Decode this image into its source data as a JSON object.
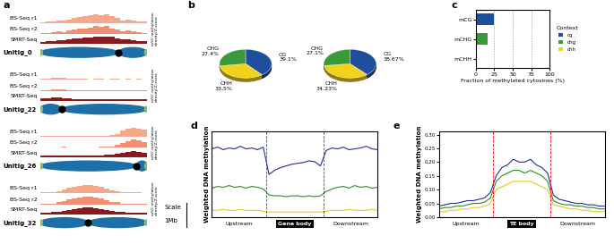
{
  "chart_data": [
    {
      "panel": "a",
      "type": "genome_tracks",
      "ylabel": "m5C methylation\ndensity/Z-score",
      "ylim": [
        0,
        1
      ],
      "scale_label": "Scale",
      "scale_bar_label": "1Mb",
      "unitigs": [
        {
          "name": "Unitig_0",
          "centromere": 0.73,
          "series": [
            {
              "name": "BS-Seq r1",
              "color": "#f5a88a",
              "values": [
                0.1,
                0.15,
                0.2,
                0.3,
                0.25,
                0.4,
                0.5,
                0.6,
                0.7,
                0.8,
                0.9,
                0.85,
                0.95,
                0.7,
                0.5,
                0.3,
                0.4,
                0.3,
                0.2,
                0.15
              ]
            },
            {
              "name": "BS-Seq r2",
              "color": "#ef8f73",
              "values": [
                0.1,
                0.1,
                0.2,
                0.25,
                0.2,
                0.35,
                0.45,
                0.55,
                0.6,
                0.7,
                0.8,
                0.75,
                0.85,
                0.6,
                0.45,
                0.3,
                0.35,
                0.25,
                0.2,
                0.1
              ]
            },
            {
              "name": "SMRT-Seq",
              "color": "#8b1a1a",
              "values": [
                0.2,
                0.3,
                0.3,
                0.4,
                0.4,
                0.5,
                0.6,
                0.6,
                0.7,
                0.7,
                0.8,
                0.8,
                0.9,
                0.8,
                0.6,
                0.5,
                0.5,
                0.4,
                0.3,
                0.3
              ]
            }
          ]
        },
        {
          "name": "Unitig_22",
          "centromere": 0.2,
          "series": [
            {
              "name": "BS-Seq r1",
              "color": "#f5a88a",
              "values": [
                0.1,
                0.15,
                0.2,
                0.25,
                0.2,
                0.15,
                0.1,
                0.1,
                0.1,
                0.05,
                0.1,
                0.1,
                0.05,
                0.1,
                0.1,
                0.05,
                0.1,
                0.05,
                0.1,
                0.05
              ]
            },
            {
              "name": "BS-Seq r2",
              "color": "#ef8f73",
              "values": [
                0.1,
                0.1,
                0.15,
                0.2,
                0.2,
                0.1,
                0.1,
                0.05,
                0.1,
                0.05,
                0.05,
                0.1,
                0.05,
                0.05,
                0.1,
                0.05,
                0.05,
                0.05,
                0.1,
                0.05
              ]
            },
            {
              "name": "SMRT-Seq",
              "color": "#8b1a1a",
              "values": [
                0.3,
                0.3,
                0.4,
                0.4,
                0.3,
                0.3,
                0.2,
                0.2,
                0.2,
                0.2,
                0.2,
                0.2,
                0.2,
                0.2,
                0.2,
                0.2,
                0.2,
                0.2,
                0.2,
                0.2
              ]
            }
          ]
        },
        {
          "name": "Unitig_26",
          "centromere": 0.9,
          "series": [
            {
              "name": "BS-Seq r1",
              "color": "#f5a88a",
              "values": [
                0.05,
                0.05,
                0.1,
                0.05,
                0.05,
                0.1,
                0.05,
                0.05,
                0.1,
                0.05,
                0.1,
                0.05,
                0.1,
                0.15,
                0.3,
                0.6,
                0.8,
                0.9,
                0.85,
                0.7
              ]
            },
            {
              "name": "BS-Seq r2",
              "color": "#ef8f73",
              "values": [
                0.05,
                0.05,
                0.05,
                0.05,
                0.1,
                0.05,
                0.05,
                0.05,
                0.05,
                0.05,
                0.05,
                0.1,
                0.1,
                0.15,
                0.25,
                0.5,
                0.7,
                0.8,
                0.75,
                0.6
              ]
            },
            {
              "name": "SMRT-Seq",
              "color": "#8b1a1a",
              "values": [
                0.2,
                0.2,
                0.2,
                0.2,
                0.2,
                0.2,
                0.2,
                0.2,
                0.2,
                0.2,
                0.25,
                0.25,
                0.3,
                0.3,
                0.4,
                0.5,
                0.6,
                0.7,
                0.6,
                0.5
              ]
            }
          ]
        },
        {
          "name": "Unitig_32",
          "centromere": 0.45,
          "series": [
            {
              "name": "BS-Seq r1",
              "color": "#f5a88a",
              "values": [
                0.1,
                0.1,
                0.15,
                0.2,
                0.4,
                0.6,
                0.7,
                0.8,
                0.9,
                0.85,
                0.8,
                0.7,
                0.5,
                0.3,
                0.2,
                0.15,
                0.1,
                0.1,
                0.1,
                0.05
              ]
            },
            {
              "name": "BS-Seq r2",
              "color": "#ef8f73",
              "values": [
                0.1,
                0.1,
                0.1,
                0.2,
                0.35,
                0.5,
                0.6,
                0.7,
                0.8,
                0.75,
                0.7,
                0.6,
                0.45,
                0.25,
                0.2,
                0.1,
                0.1,
                0.1,
                0.05,
                0.05
              ]
            },
            {
              "name": "SMRT-Seq",
              "color": "#8b1a1a",
              "values": [
                0.2,
                0.2,
                0.3,
                0.3,
                0.4,
                0.5,
                0.6,
                0.7,
                0.8,
                0.8,
                0.7,
                0.6,
                0.5,
                0.4,
                0.3,
                0.3,
                0.2,
                0.2,
                0.2,
                0.2
              ]
            }
          ]
        }
      ]
    },
    {
      "panel": "b",
      "type": "pie",
      "pies": [
        {
          "categories": [
            "CG",
            "CHH",
            "CHG"
          ],
          "values": [
            39.1,
            33.5,
            27.4
          ],
          "value_labels": [
            "39.1%",
            "33.5%",
            "27.4%"
          ],
          "colors": [
            "#1f4e9c",
            "#f2d21b",
            "#3a9a3a"
          ]
        },
        {
          "categories": [
            "CG",
            "CHH",
            "CHG"
          ],
          "values": [
            38.67,
            34.23,
            27.1
          ],
          "value_labels": [
            "38.67%",
            "34.23%",
            "27.1%"
          ],
          "colors": [
            "#1f4e9c",
            "#f2d21b",
            "#3a9a3a"
          ]
        }
      ]
    },
    {
      "panel": "c",
      "type": "bar",
      "orientation": "horizontal",
      "categories": [
        "mCG",
        "mCHG",
        "mCHH"
      ],
      "series": [
        {
          "name": "cg",
          "color": "#1f4e9c",
          "values": [
            24,
            null,
            null
          ]
        },
        {
          "name": "chg",
          "color": "#3a9a3a",
          "values": [
            null,
            16,
            null
          ]
        },
        {
          "name": "chh",
          "color": "#f2d21b",
          "values": [
            null,
            null,
            1
          ]
        }
      ],
      "xlabel": "Fraction of methylated cytosines (%)",
      "xlim": [
        0,
        100
      ],
      "xticks": [
        0,
        25,
        50,
        75,
        100
      ],
      "grid": true,
      "legend": "right",
      "legend_title": "Context"
    },
    {
      "panel": "d",
      "type": "line",
      "ylabel": "Weighted DNA methylation",
      "tick_labels": false,
      "x": [
        1,
        2,
        3,
        4,
        5,
        6,
        7,
        8,
        9,
        10,
        11,
        12,
        13,
        14,
        15,
        16,
        17,
        18,
        19,
        20,
        21,
        22,
        23,
        24,
        25,
        26,
        27,
        28,
        29,
        30
      ],
      "xlim": [
        1,
        30
      ],
      "ylim": [
        0,
        1
      ],
      "boundaries": [
        10.5,
        20.5
      ],
      "region_labels": [
        "Upstream",
        "Gene body",
        "Downstream"
      ],
      "series": [
        {
          "color": "#1f2f9c",
          "values": [
            0.8,
            0.82,
            0.79,
            0.81,
            0.8,
            0.83,
            0.8,
            0.81,
            0.79,
            0.82,
            0.5,
            0.55,
            0.58,
            0.6,
            0.62,
            0.63,
            0.64,
            0.66,
            0.65,
            0.6,
            0.78,
            0.81,
            0.8,
            0.82,
            0.79,
            0.8,
            0.81,
            0.83,
            0.8,
            0.79
          ]
        },
        {
          "color": "#2e8b2e",
          "values": [
            0.34,
            0.36,
            0.35,
            0.37,
            0.35,
            0.36,
            0.34,
            0.36,
            0.35,
            0.33,
            0.26,
            0.25,
            0.25,
            0.24,
            0.25,
            0.25,
            0.24,
            0.25,
            0.24,
            0.25,
            0.3,
            0.33,
            0.35,
            0.36,
            0.34,
            0.37,
            0.35,
            0.36,
            0.34,
            0.35
          ]
        },
        {
          "color": "#e8c81a",
          "values": [
            0.08,
            0.08,
            0.09,
            0.08,
            0.08,
            0.09,
            0.08,
            0.08,
            0.08,
            0.07,
            0.06,
            0.06,
            0.06,
            0.06,
            0.06,
            0.06,
            0.06,
            0.06,
            0.06,
            0.06,
            0.07,
            0.08,
            0.08,
            0.08,
            0.09,
            0.08,
            0.08,
            0.08,
            0.09,
            0.08
          ]
        }
      ]
    },
    {
      "panel": "e",
      "type": "line",
      "ylabel": "Weighted DNA methylation",
      "tick_labels": "y",
      "x": [
        1,
        2,
        3,
        4,
        5,
        6,
        7,
        8,
        9,
        10,
        11,
        12,
        13,
        14,
        15,
        16,
        17,
        18,
        19,
        20,
        21,
        22,
        23,
        24,
        25,
        26,
        27,
        28,
        29,
        30
      ],
      "xlim": [
        1,
        30
      ],
      "ylim": [
        0,
        0.31
      ],
      "yticks": [
        {
          "value": 0.0,
          "label": "0.00"
        },
        0.05,
        {
          "value": 0.1,
          "label": "0.10"
        },
        0.15,
        {
          "value": 0.2,
          "label": "0.20"
        },
        0.25,
        {
          "value": 0.3,
          "label": "0.30"
        }
      ],
      "boundaries": [
        10.5,
        20.5
      ],
      "region_labels": [
        "Upstream",
        "TE body",
        "Downstream"
      ],
      "series": [
        {
          "color": "#1f2f9c",
          "values": [
            0.04,
            0.045,
            0.05,
            0.05,
            0.055,
            0.06,
            0.06,
            0.065,
            0.07,
            0.09,
            0.15,
            0.18,
            0.19,
            0.21,
            0.2,
            0.2,
            0.21,
            0.19,
            0.18,
            0.16,
            0.08,
            0.065,
            0.06,
            0.055,
            0.05,
            0.05,
            0.045,
            0.045,
            0.04,
            0.04
          ]
        },
        {
          "color": "#2e8b2e",
          "values": [
            0.03,
            0.035,
            0.035,
            0.04,
            0.04,
            0.045,
            0.05,
            0.05,
            0.055,
            0.07,
            0.13,
            0.15,
            0.16,
            0.17,
            0.17,
            0.16,
            0.17,
            0.16,
            0.15,
            0.13,
            0.06,
            0.05,
            0.045,
            0.045,
            0.04,
            0.04,
            0.035,
            0.035,
            0.03,
            0.03
          ]
        },
        {
          "color": "#e8c81a",
          "values": [
            0.02,
            0.02,
            0.025,
            0.025,
            0.03,
            0.03,
            0.035,
            0.035,
            0.04,
            0.05,
            0.1,
            0.11,
            0.12,
            0.13,
            0.13,
            0.13,
            0.13,
            0.12,
            0.11,
            0.1,
            0.045,
            0.04,
            0.035,
            0.03,
            0.03,
            0.025,
            0.025,
            0.02,
            0.02,
            0.02
          ]
        }
      ]
    }
  ]
}
